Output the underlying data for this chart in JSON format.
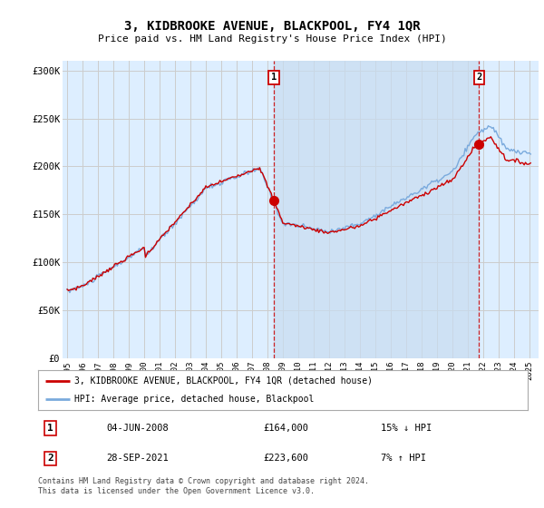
{
  "title": "3, KIDBROOKE AVENUE, BLACKPOOL, FY4 1QR",
  "subtitle": "Price paid vs. HM Land Registry's House Price Index (HPI)",
  "yticks": [
    0,
    50000,
    100000,
    150000,
    200000,
    250000,
    300000
  ],
  "ytick_labels": [
    "£0",
    "£50K",
    "£100K",
    "£150K",
    "£200K",
    "£250K",
    "£300K"
  ],
  "ylim": [
    0,
    310000
  ],
  "xticks": [
    1995,
    1996,
    1997,
    1998,
    1999,
    2000,
    2001,
    2002,
    2003,
    2004,
    2005,
    2006,
    2007,
    2008,
    2009,
    2010,
    2011,
    2012,
    2013,
    2014,
    2015,
    2016,
    2017,
    2018,
    2019,
    2020,
    2021,
    2022,
    2023,
    2024,
    2025
  ],
  "sale1_date": 2008.42,
  "sale1_price": 164000,
  "sale2_date": 2021.74,
  "sale2_price": 223600,
  "sale1_info": "04-JUN-2008",
  "sale1_amount": "£164,000",
  "sale1_hpi": "15% ↓ HPI",
  "sale2_info": "28-SEP-2021",
  "sale2_amount": "£223,600",
  "sale2_hpi": "7% ↑ HPI",
  "legend_line1": "3, KIDBROOKE AVENUE, BLACKPOOL, FY4 1QR (detached house)",
  "legend_line2": "HPI: Average price, detached house, Blackpool",
  "footer": "Contains HM Land Registry data © Crown copyright and database right 2024.\nThis data is licensed under the Open Government Licence v3.0.",
  "hpi_color": "#7aaadd",
  "sale_color": "#cc0000",
  "vline_color": "#cc0000",
  "grid_color": "#cccccc",
  "bg_color": "#ddeeff",
  "shade_color": "#c8dcf0",
  "plot_bg": "#ffffff"
}
